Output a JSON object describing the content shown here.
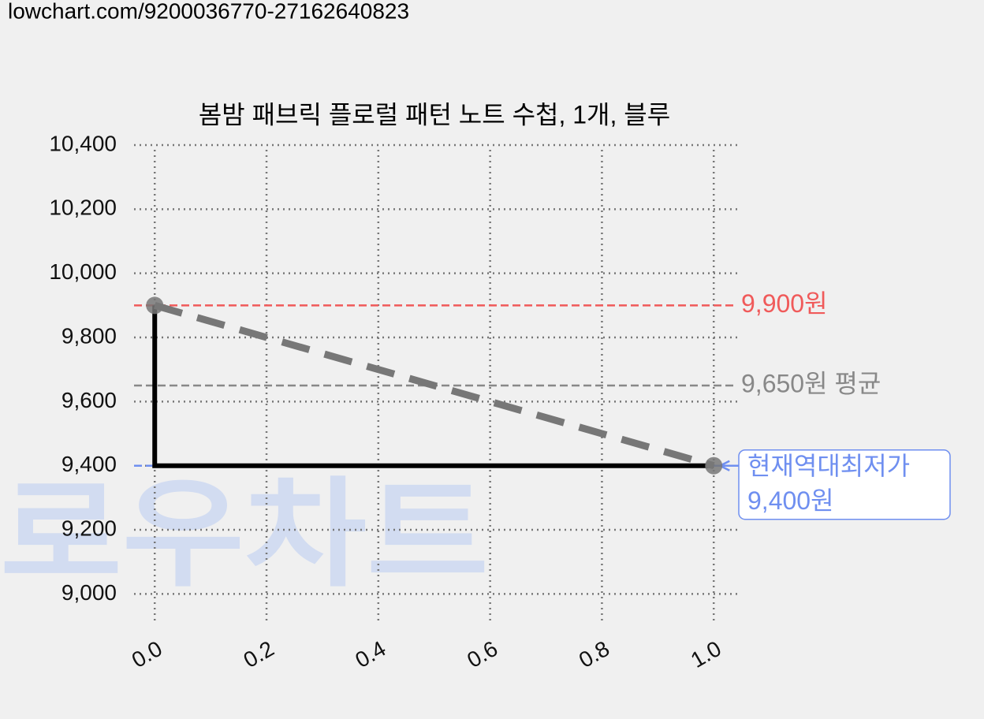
{
  "page_url": "lowchart.com/9200036770-27162640823",
  "watermark": "로우차트",
  "chart_data": {
    "type": "line",
    "title": "봄밤 패브릭 플로럴 패턴 노트 수첩, 1개, 블루",
    "xlim": [
      -0.037,
      1.042
    ],
    "ylim": [
      8910,
      10400
    ],
    "xticks": [
      {
        "value": 0,
        "label": "0.0"
      },
      {
        "value": 0.2,
        "label": "0.2"
      },
      {
        "value": 0.4,
        "label": "0.4"
      },
      {
        "value": 0.6,
        "label": "0.6"
      },
      {
        "value": 0.8,
        "label": "0.8"
      },
      {
        "value": 1,
        "label": "1.0"
      }
    ],
    "yticks": [
      {
        "value": 9000,
        "label": "9,000"
      },
      {
        "value": 9200,
        "label": "9,200"
      },
      {
        "value": 9400,
        "label": "9,400"
      },
      {
        "value": 9600,
        "label": "9,600"
      },
      {
        "value": 9800,
        "label": "9,800"
      },
      {
        "value": 10000,
        "label": "10,000"
      },
      {
        "value": 10200,
        "label": "10,200"
      },
      {
        "value": 10400,
        "label": "10,400"
      }
    ],
    "grid": true,
    "series": [
      {
        "color": "#000000",
        "x": [
          0,
          0,
          1
        ],
        "values": [
          9900,
          9400,
          9400
        ],
        "dashed": false,
        "markers": false
      },
      {
        "color": "#777777",
        "x": [
          0,
          1
        ],
        "values": [
          9900,
          9400
        ],
        "dashed": true,
        "markers": true
      }
    ],
    "hlines": [
      {
        "value": 9900,
        "label": [
          "9,900원"
        ],
        "color": "#f05a5a",
        "boxed": false
      },
      {
        "value": 9650,
        "label": [
          "9,650원 평균"
        ],
        "color": "#888888",
        "boxed": false
      },
      {
        "value": 9400,
        "label": [
          "현재역대최저가",
          "9,400원"
        ],
        "color": "#6f8ff0",
        "boxed": true
      }
    ]
  }
}
